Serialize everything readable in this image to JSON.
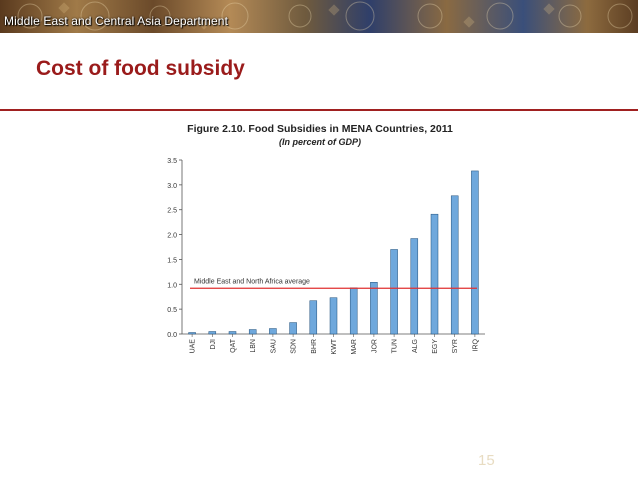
{
  "header": {
    "department": "Middle East and Central Asia Department"
  },
  "slide": {
    "title": "Cost of food subsidy",
    "page_number": "15"
  },
  "colors": {
    "title": "#9a1b1b",
    "rule": "#a02020",
    "bar_fill": "#6fa8dc",
    "bar_stroke": "#1f4e79",
    "average_line": "#e03030"
  },
  "chart_data": {
    "type": "bar",
    "title": "Figure 2.10. Food Subsidies in MENA Countries, 2011",
    "subtitle": "(In percent of GDP)",
    "xlabel": "",
    "ylabel": "",
    "categories": [
      "UAE",
      "DJI",
      "QAT",
      "LBN",
      "SAU",
      "SDN",
      "BHR",
      "KWT",
      "MAR",
      "JOR",
      "TUN",
      "ALG",
      "EGY",
      "SYR",
      "IRQ"
    ],
    "values": [
      0.03,
      0.05,
      0.05,
      0.09,
      0.11,
      0.23,
      0.67,
      0.73,
      0.93,
      1.04,
      1.7,
      1.92,
      2.41,
      2.78,
      3.28
    ],
    "ylim": [
      0,
      3.5
    ],
    "yticks": [
      "0.0",
      "0.5",
      "1.0",
      "1.5",
      "2.0",
      "2.5",
      "3.0",
      "3.5"
    ],
    "grid": false,
    "reference_line": {
      "label": "Middle East and North Africa average",
      "value": 0.92
    }
  }
}
